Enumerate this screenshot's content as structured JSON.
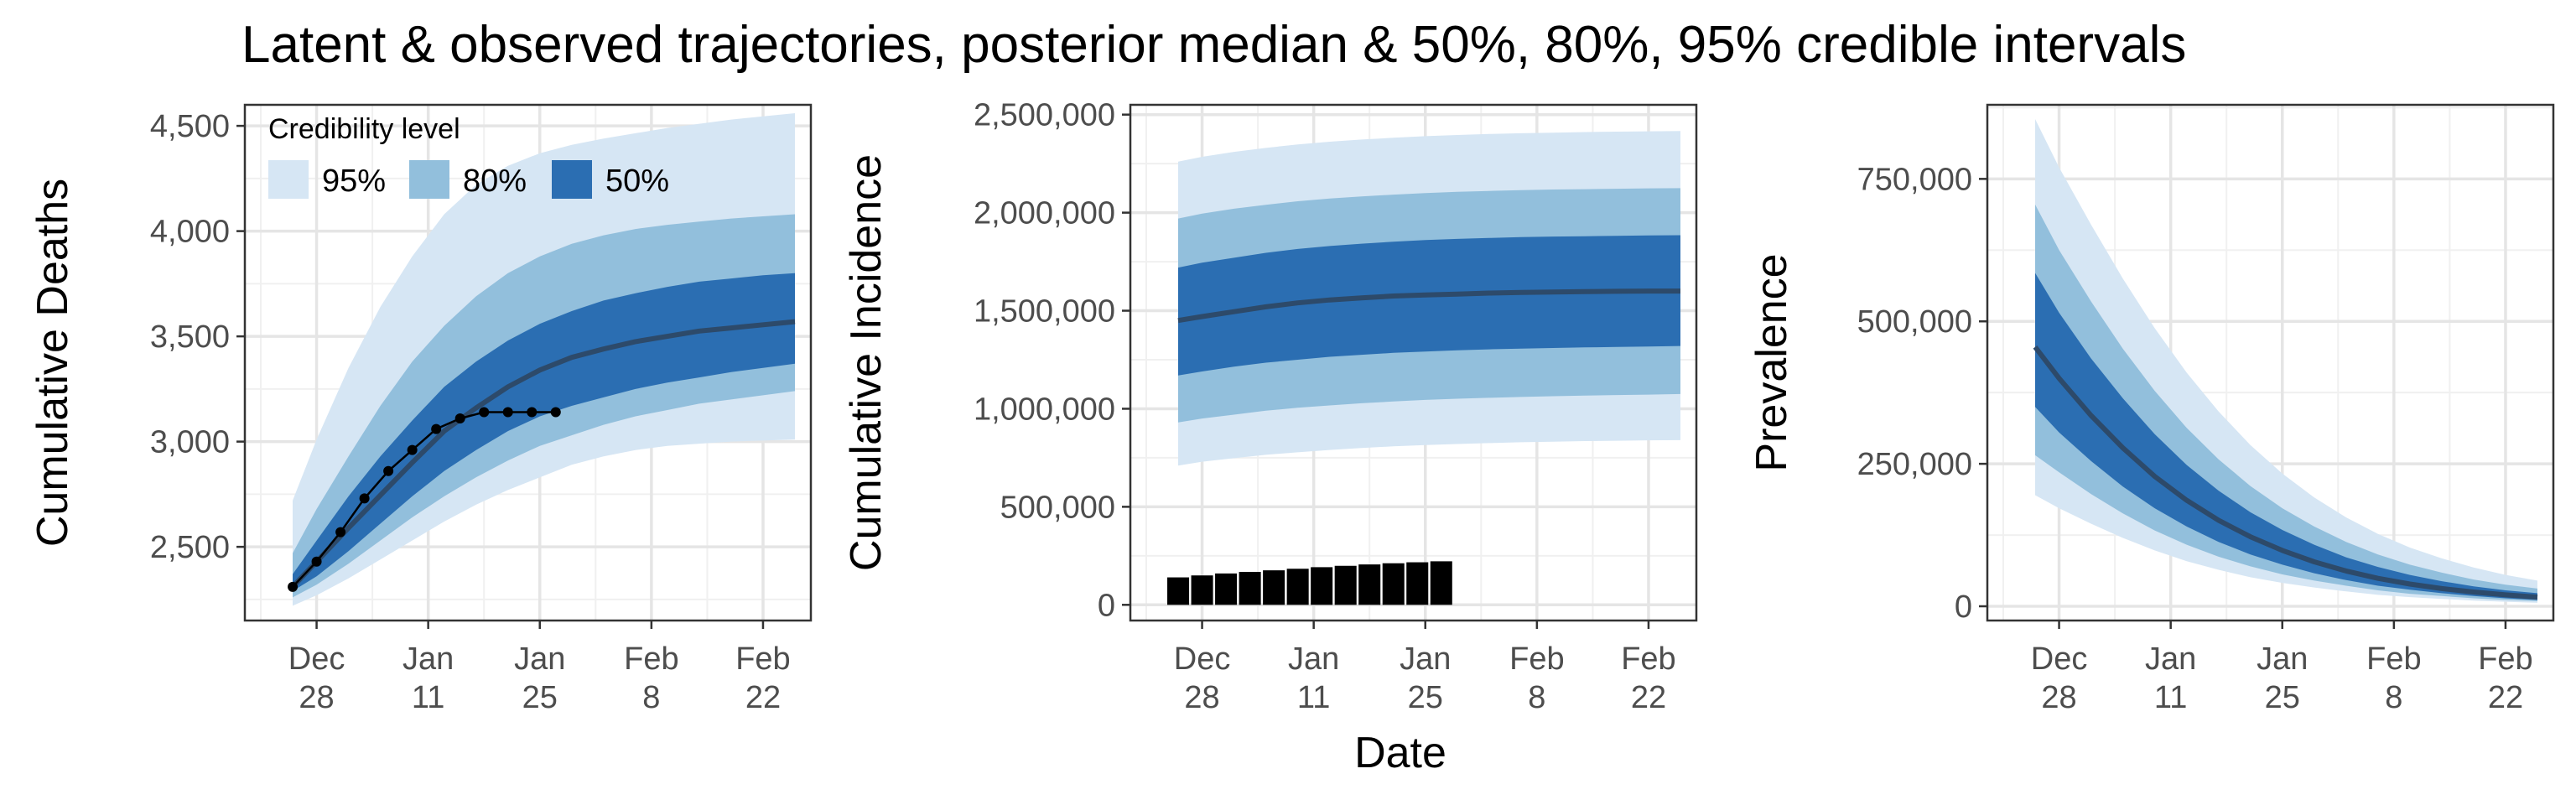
{
  "title": "Latent & observed trajectories, posterior median & 50%, 80%, 95% credible intervals",
  "colors": {
    "band95": "#d6e6f4",
    "band80": "#92bfdc",
    "band50": "#2b6eb2",
    "median": "#2d4a6a",
    "observed": "#000000",
    "grid_major": "#e5e5e5",
    "grid_minor": "#f0f0f0",
    "panel_border": "#333333"
  },
  "legend": {
    "title": "Credibility level",
    "items": [
      {
        "label": "95%",
        "color": "#d6e6f4"
      },
      {
        "label": "80%",
        "color": "#92bfdc"
      },
      {
        "label": "50%",
        "color": "#2b6eb2"
      }
    ]
  },
  "x_axis": {
    "label": "Date",
    "ticks": [
      {
        "date": "2020-12-28",
        "line1": "Dec",
        "line2": "28"
      },
      {
        "date": "2021-01-11",
        "line1": "Jan",
        "line2": "11"
      },
      {
        "date": "2021-01-25",
        "line1": "Jan",
        "line2": "25"
      },
      {
        "date": "2021-02-08",
        "line1": "Feb",
        "line2": "8"
      },
      {
        "date": "2021-02-22",
        "line1": "Feb",
        "line2": "22"
      }
    ]
  },
  "chart_data": [
    {
      "type": "area",
      "ylabel": "Cumulative Deaths",
      "xlim": [
        "2020-12-19",
        "2021-02-28"
      ],
      "ylim": [
        2150,
        4600
      ],
      "y_ticks": [
        {
          "v": 2500,
          "label": "2,500"
        },
        {
          "v": 3000,
          "label": "3,000"
        },
        {
          "v": 3500,
          "label": "3,500"
        },
        {
          "v": 4000,
          "label": "4,000"
        },
        {
          "v": 4500,
          "label": "4,500"
        }
      ],
      "grid": true,
      "legend_position": "top-left",
      "x": [
        "2020-12-25",
        "2020-12-28",
        "2021-01-01",
        "2021-01-05",
        "2021-01-09",
        "2021-01-13",
        "2021-01-17",
        "2021-01-21",
        "2021-01-25",
        "2021-01-29",
        "2021-02-02",
        "2021-02-06",
        "2021-02-10",
        "2021-02-14",
        "2021-02-18",
        "2021-02-22",
        "2021-02-26"
      ],
      "median": [
        2310,
        2430,
        2590,
        2745,
        2900,
        3050,
        3160,
        3260,
        3340,
        3400,
        3440,
        3475,
        3500,
        3525,
        3540,
        3555,
        3570
      ],
      "lower50": [
        2290,
        2360,
        2480,
        2610,
        2740,
        2860,
        2960,
        3050,
        3120,
        3170,
        3210,
        3250,
        3280,
        3305,
        3330,
        3350,
        3370
      ],
      "upper50": [
        2370,
        2530,
        2740,
        2930,
        3100,
        3260,
        3380,
        3480,
        3560,
        3620,
        3670,
        3705,
        3735,
        3760,
        3775,
        3790,
        3800
      ],
      "lower80": [
        2260,
        2320,
        2420,
        2530,
        2640,
        2740,
        2830,
        2910,
        2980,
        3030,
        3080,
        3120,
        3150,
        3180,
        3200,
        3220,
        3240
      ],
      "upper80": [
        2470,
        2680,
        2930,
        3170,
        3380,
        3550,
        3690,
        3800,
        3880,
        3940,
        3980,
        4010,
        4030,
        4045,
        4060,
        4070,
        4080
      ],
      "lower95": [
        2220,
        2270,
        2350,
        2440,
        2530,
        2620,
        2700,
        2770,
        2830,
        2890,
        2930,
        2960,
        2980,
        2990,
        3000,
        3005,
        3010
      ],
      "upper95": [
        2720,
        3010,
        3350,
        3640,
        3880,
        4080,
        4220,
        4310,
        4370,
        4410,
        4440,
        4465,
        4490,
        4510,
        4530,
        4545,
        4560
      ],
      "observed": {
        "x": [
          "2020-12-25",
          "2020-12-28",
          "2020-12-31",
          "2021-01-03",
          "2021-01-06",
          "2021-01-09",
          "2021-01-12",
          "2021-01-15",
          "2021-01-18",
          "2021-01-21",
          "2021-01-24",
          "2021-01-27"
        ],
        "y": [
          2310,
          2430,
          2570,
          2730,
          2860,
          2960,
          3060,
          3110,
          3140,
          3140,
          3140,
          3140
        ]
      }
    },
    {
      "type": "area",
      "ylabel": "Cumulative Incidence",
      "xlim": [
        "2020-12-19",
        "2021-02-28"
      ],
      "ylim": [
        -80000,
        2550000
      ],
      "y_ticks": [
        {
          "v": 0,
          "label": "0"
        },
        {
          "v": 500000,
          "label": "500,000"
        },
        {
          "v": 1000000,
          "label": "1,000,000"
        },
        {
          "v": 1500000,
          "label": "1,500,000"
        },
        {
          "v": 2000000,
          "label": "2,000,000"
        },
        {
          "v": 2500000,
          "label": "2,500,000"
        }
      ],
      "grid": true,
      "x": [
        "2020-12-25",
        "2020-12-28",
        "2021-01-01",
        "2021-01-05",
        "2021-01-09",
        "2021-01-13",
        "2021-01-17",
        "2021-01-21",
        "2021-01-25",
        "2021-01-29",
        "2021-02-02",
        "2021-02-06",
        "2021-02-10",
        "2021-02-14",
        "2021-02-18",
        "2021-02-22",
        "2021-02-26"
      ],
      "median": [
        1450000,
        1470000,
        1495000,
        1520000,
        1540000,
        1555000,
        1565000,
        1575000,
        1580000,
        1585000,
        1590000,
        1593000,
        1595000,
        1597000,
        1599000,
        1600000,
        1600000
      ],
      "lower50": [
        1170000,
        1190000,
        1215000,
        1235000,
        1250000,
        1265000,
        1275000,
        1285000,
        1292000,
        1298000,
        1303000,
        1307000,
        1310000,
        1313000,
        1315000,
        1317000,
        1320000
      ],
      "upper50": [
        1720000,
        1745000,
        1770000,
        1795000,
        1815000,
        1830000,
        1842000,
        1852000,
        1860000,
        1866000,
        1871000,
        1875000,
        1878000,
        1880000,
        1882000,
        1884000,
        1885000
      ],
      "lower80": [
        930000,
        950000,
        970000,
        990000,
        1005000,
        1017000,
        1028000,
        1037000,
        1045000,
        1051000,
        1056000,
        1060000,
        1064000,
        1067000,
        1070000,
        1072000,
        1075000
      ],
      "upper80": [
        1970000,
        1995000,
        2020000,
        2040000,
        2058000,
        2072000,
        2083000,
        2092000,
        2100000,
        2106000,
        2111000,
        2115000,
        2118000,
        2120000,
        2122000,
        2124000,
        2125000
      ],
      "lower95": [
        710000,
        730000,
        748000,
        765000,
        778000,
        790000,
        800000,
        808000,
        815000,
        820000,
        825000,
        829000,
        832000,
        835000,
        837000,
        839000,
        840000
      ],
      "upper95": [
        2260000,
        2285000,
        2310000,
        2330000,
        2348000,
        2362000,
        2373000,
        2382000,
        2390000,
        2396000,
        2401000,
        2405000,
        2408000,
        2411000,
        2413000,
        2415000,
        2416000
      ],
      "observed_bars": {
        "x": [
          "2020-12-25",
          "2020-12-28",
          "2020-12-31",
          "2021-01-03",
          "2021-01-06",
          "2021-01-09",
          "2021-01-12",
          "2021-01-15",
          "2021-01-18",
          "2021-01-21",
          "2021-01-24",
          "2021-01-27"
        ],
        "y": [
          140000,
          150000,
          160000,
          168000,
          176000,
          184000,
          192000,
          199000,
          206000,
          212000,
          217000,
          222000
        ]
      }
    },
    {
      "type": "area",
      "ylabel": "Prevalence",
      "xlim": [
        "2020-12-19",
        "2021-02-28"
      ],
      "ylim": [
        -25000,
        880000
      ],
      "y_ticks": [
        {
          "v": 0,
          "label": "0"
        },
        {
          "v": 250000,
          "label": "250,000"
        },
        {
          "v": 500000,
          "label": "500,000"
        },
        {
          "v": 750000,
          "label": "750,000"
        }
      ],
      "grid": true,
      "x": [
        "2020-12-25",
        "2020-12-28",
        "2021-01-01",
        "2021-01-05",
        "2021-01-09",
        "2021-01-13",
        "2021-01-17",
        "2021-01-21",
        "2021-01-25",
        "2021-01-29",
        "2021-02-02",
        "2021-02-06",
        "2021-02-10",
        "2021-02-14",
        "2021-02-18",
        "2021-02-22",
        "2021-02-26"
      ],
      "median": [
        455000,
        400000,
        335000,
        278000,
        228000,
        186000,
        151000,
        122000,
        98000,
        78000,
        62000,
        49000,
        39000,
        31000,
        25000,
        20000,
        16000
      ],
      "lower50": [
        350000,
        305000,
        255000,
        210000,
        172000,
        140000,
        113000,
        91000,
        73000,
        58000,
        46000,
        36000,
        29000,
        23000,
        18000,
        14000,
        11000
      ],
      "upper50": [
        585000,
        515000,
        435000,
        365000,
        302000,
        248000,
        203000,
        165000,
        134000,
        108000,
        86000,
        69000,
        55000,
        44000,
        35000,
        28000,
        23000
      ],
      "lower80": [
        265000,
        235000,
        197000,
        163000,
        133000,
        108000,
        87000,
        70000,
        56000,
        45000,
        36000,
        28000,
        22000,
        18000,
        14000,
        11000,
        9000
      ],
      "upper80": [
        705000,
        625000,
        535000,
        452000,
        378000,
        313000,
        258000,
        211000,
        172000,
        140000,
        113000,
        91000,
        73000,
        59000,
        47000,
        38000,
        31000
      ],
      "lower95": [
        195000,
        172000,
        145000,
        120000,
        98000,
        79000,
        64000,
        51000,
        41000,
        33000,
        26000,
        20000,
        16000,
        13000,
        10000,
        8000,
        6000
      ],
      "upper95": [
        855000,
        770000,
        670000,
        575000,
        488000,
        410000,
        342000,
        283000,
        233000,
        191000,
        156000,
        127000,
        103000,
        84000,
        68000,
        55000,
        45000
      ]
    }
  ]
}
